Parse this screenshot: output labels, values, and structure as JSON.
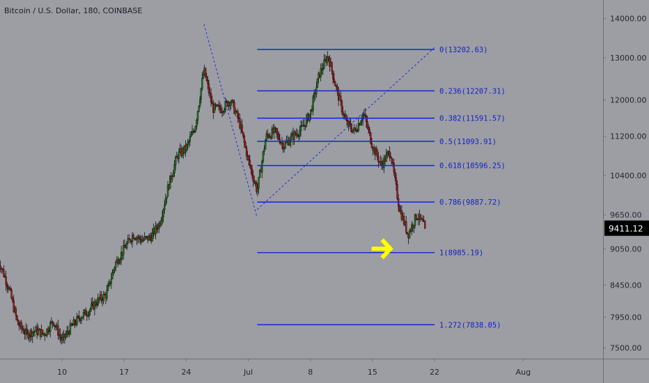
{
  "window": {
    "title": "Bitcoin / U.S. Dollar, 180, COINBASE"
  },
  "colors": {
    "background": "#9d9ea3",
    "fib": "#1c2bdc",
    "fib_label": "#1521c8",
    "up": "#1f7a1f",
    "down": "#b01a1a",
    "wick": "#111111",
    "arrow": "#ffff00",
    "price_tag_bg": "#000000",
    "price_tag_text": "#ffffff",
    "axis_text": "#26262e"
  },
  "chart_data": {
    "type": "candlestick",
    "title": "Bitcoin / U.S. Dollar, 180, COINBASE",
    "yticks": [
      14000,
      13000,
      12000,
      11200,
      10400,
      9650,
      9050,
      8450,
      7950,
      7500
    ],
    "ytick_labels": [
      "14000.00",
      "13000.00",
      "12000.00",
      "11200.00",
      "10400.00",
      "9650.00",
      "9050.00",
      "8450.00",
      "7950.00",
      "7500.00"
    ],
    "ylim": [
      7350,
      14500
    ],
    "y_scale": "log",
    "xticks": [
      {
        "label": "10",
        "date": "2019-06-10"
      },
      {
        "label": "17",
        "date": "2019-06-17"
      },
      {
        "label": "24",
        "date": "2019-06-24"
      },
      {
        "label": "Jul",
        "date": "2019-07-01"
      },
      {
        "label": "8",
        "date": "2019-07-08"
      },
      {
        "label": "15",
        "date": "2019-07-15"
      },
      {
        "label": "22",
        "date": "2019-07-22"
      },
      {
        "label": "Aug",
        "date": "2019-08-01"
      }
    ],
    "xlim": [
      "2019-06-03",
      "2019-08-10"
    ],
    "price_path": [
      [
        "2019-06-03",
        8800
      ],
      [
        "2019-06-04",
        8400
      ],
      [
        "2019-06-05",
        7850
      ],
      [
        "2019-06-06",
        7700
      ],
      [
        "2019-06-07",
        7750
      ],
      [
        "2019-06-08",
        7700
      ],
      [
        "2019-06-09",
        7900
      ],
      [
        "2019-06-10",
        7600
      ],
      [
        "2019-06-11",
        7800
      ],
      [
        "2019-06-12",
        7950
      ],
      [
        "2019-06-13",
        8050
      ],
      [
        "2019-06-14",
        8200
      ],
      [
        "2019-06-15",
        8300
      ],
      [
        "2019-06-16",
        8800
      ],
      [
        "2019-06-17",
        9050
      ],
      [
        "2019-06-18",
        9300
      ],
      [
        "2019-06-19",
        9200
      ],
      [
        "2019-06-20",
        9250
      ],
      [
        "2019-06-21",
        9500
      ],
      [
        "2019-06-22",
        10200
      ],
      [
        "2019-06-23",
        10800
      ],
      [
        "2019-06-24",
        10950
      ],
      [
        "2019-06-25",
        11400
      ],
      [
        "2019-06-26",
        12700
      ],
      [
        "2019-06-27",
        11800
      ],
      [
        "2019-06-28",
        11800
      ],
      [
        "2019-06-29",
        12000
      ],
      [
        "2019-06-30",
        11500
      ],
      [
        "2019-07-01",
        10700
      ],
      [
        "2019-07-02",
        10100
      ],
      [
        "2019-07-03",
        11200
      ],
      [
        "2019-07-04",
        11300
      ],
      [
        "2019-07-05",
        11000
      ],
      [
        "2019-07-06",
        11200
      ],
      [
        "2019-07-07",
        11350
      ],
      [
        "2019-07-08",
        11700
      ],
      [
        "2019-07-09",
        12600
      ],
      [
        "2019-07-10",
        13050
      ],
      [
        "2019-07-11",
        12200
      ],
      [
        "2019-07-12",
        11500
      ],
      [
        "2019-07-13",
        11300
      ],
      [
        "2019-07-14",
        11700
      ],
      [
        "2019-07-15",
        11000
      ],
      [
        "2019-07-16",
        10600
      ],
      [
        "2019-07-17",
        10900
      ],
      [
        "2019-07-18",
        9800
      ],
      [
        "2019-07-19",
        9300
      ],
      [
        "2019-07-20",
        9650
      ],
      [
        "2019-07-21",
        9411.12
      ]
    ],
    "fib_levels": [
      {
        "label": "0(13202.63)",
        "value": 13202.63
      },
      {
        "label": "0.236(12207.31)",
        "value": 12207.31
      },
      {
        "label": "0.382(11591.57)",
        "value": 11591.57
      },
      {
        "label": "0.5(11093.91)",
        "value": 11093.91
      },
      {
        "label": "0.618(10596.25)",
        "value": 10596.25
      },
      {
        "label": "0.786(9887.72)",
        "value": 9887.72
      },
      {
        "label": "1(8985.19)",
        "value": 8985.19
      },
      {
        "label": "1.272(7838.05)",
        "value": 7838.05
      }
    ],
    "fib_range": {
      "start": "2019-07-02",
      "end": "2019-07-22"
    },
    "trend_line_1": [
      [
        "2019-06-26",
        13850
      ],
      [
        "2019-07-02",
        9600
      ]
    ],
    "trend_line_2": [
      [
        "2019-07-02",
        9750
      ],
      [
        "2019-07-22",
        13250
      ]
    ],
    "last_price": {
      "value": 9411.12,
      "label": "9411.12"
    },
    "annotation": {
      "type": "arrow",
      "date": "2019-07-16",
      "value": 9050
    }
  }
}
